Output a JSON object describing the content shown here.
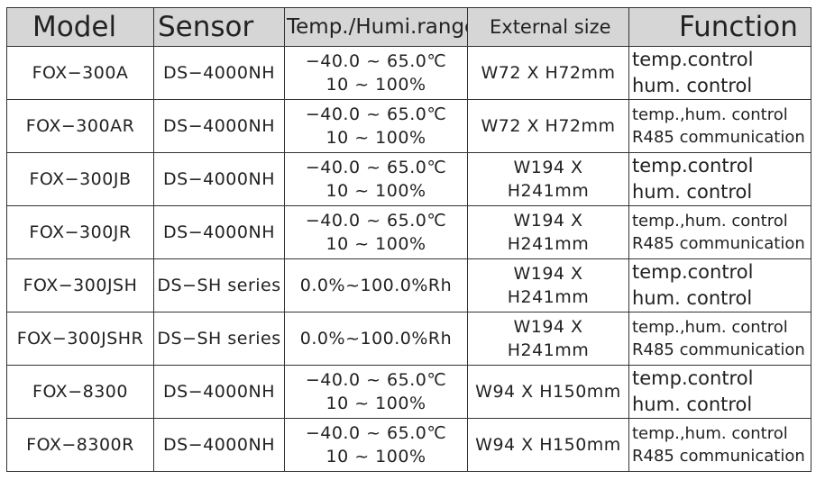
{
  "table": {
    "header": [
      "Model",
      "Sensor",
      "Temp./Humi.range",
      "External size",
      "Function"
    ],
    "rows": [
      [
        [
          "FOX−300A"
        ],
        [
          "DS−4000NH"
        ],
        [
          "−40.0 ~ 65.0℃",
          "10 ~ 100%"
        ],
        [
          "W72 X H72mm"
        ],
        [
          "temp.control",
          "hum. control"
        ]
      ],
      [
        [
          "FOX−300AR"
        ],
        [
          "DS−4000NH"
        ],
        [
          "−40.0 ~ 65.0℃",
          "10 ~ 100%"
        ],
        [
          "W72 X H72mm"
        ],
        [
          "temp.,hum. control",
          "R485 communication"
        ]
      ],
      [
        [
          "FOX−300JB"
        ],
        [
          "DS−4000NH"
        ],
        [
          "−40.0 ~ 65.0℃",
          "10 ~ 100%"
        ],
        [
          "W194 X",
          "H241mm"
        ],
        [
          "temp.control",
          "hum. control"
        ]
      ],
      [
        [
          "FOX−300JR"
        ],
        [
          "DS−4000NH"
        ],
        [
          "−40.0 ~ 65.0℃",
          "10 ~ 100%"
        ],
        [
          "W194 X",
          "H241mm"
        ],
        [
          "temp.,hum. control",
          "R485 communication"
        ]
      ],
      [
        [
          "FOX−300JSH"
        ],
        [
          "DS−SH series"
        ],
        [
          "0.0%~100.0%Rh"
        ],
        [
          "W194 X",
          "H241mm"
        ],
        [
          "temp.control",
          "hum. control"
        ]
      ],
      [
        [
          "FOX−300JSHR"
        ],
        [
          "DS−SH series"
        ],
        [
          "0.0%~100.0%Rh"
        ],
        [
          "W194 X",
          "H241mm"
        ],
        [
          "temp.,hum. control",
          "R485 communication"
        ]
      ],
      [
        [
          "FOX−8300"
        ],
        [
          "DS−4000NH"
        ],
        [
          "−40.0 ~ 65.0℃",
          "10 ~ 100%"
        ],
        [
          "W94 X H150mm"
        ],
        [
          "temp.control",
          "hum. control"
        ]
      ],
      [
        [
          "FOX−8300R"
        ],
        [
          "DS−4000NH"
        ],
        [
          "−40.0 ~ 65.0℃",
          "10 ~ 100%"
        ],
        [
          "W94 X H150mm"
        ],
        [
          "temp.,hum. control",
          "R485 communication"
        ]
      ]
    ]
  }
}
